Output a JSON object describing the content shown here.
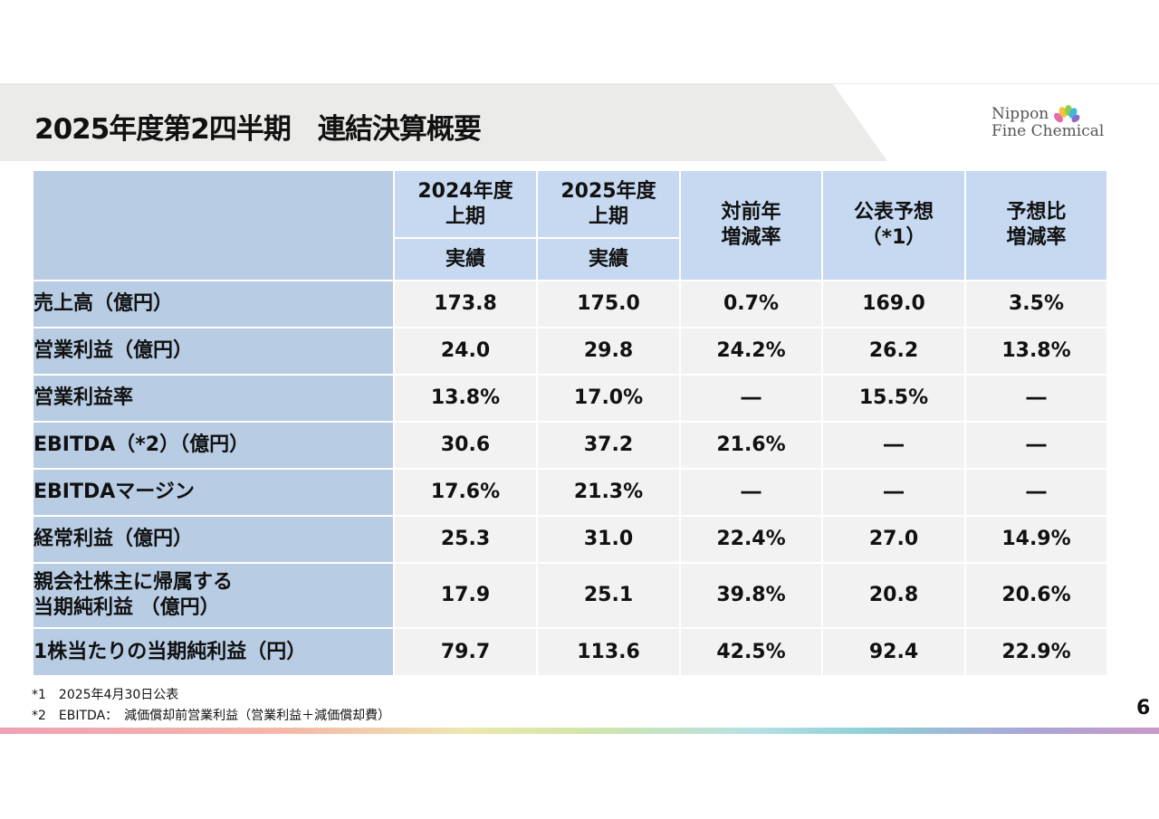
{
  "header": {
    "title": "2025年度第2四半期　連結決算概要",
    "logo_text": [
      "Nippon",
      "Fine Chemical"
    ]
  },
  "table": {
    "columns": [
      {
        "top": "2024年度\n上期",
        "sub": "実績"
      },
      {
        "top": "2025年度\n上期",
        "sub": "実績"
      },
      {
        "top": "対前年\n増減率"
      },
      {
        "top": "公表予想\n（*1）"
      },
      {
        "top": "予想比\n増減率"
      }
    ],
    "rows": [
      {
        "label": "売上高（億円）",
        "values": [
          "173.8",
          "175.0",
          "0.7%",
          "169.0",
          "3.5%"
        ]
      },
      {
        "label": "営業利益（億円）",
        "values": [
          "24.0",
          "29.8",
          "24.2%",
          "26.2",
          "13.8%"
        ]
      },
      {
        "label": "営業利益率",
        "values": [
          "13.8%",
          "17.0%",
          "―",
          "15.5%",
          "―"
        ]
      },
      {
        "label": "EBITDA（*2）（億円）",
        "values": [
          "30.6",
          "37.2",
          "21.6%",
          "―",
          "―"
        ]
      },
      {
        "label": "EBITDAマージン",
        "values": [
          "17.6%",
          "21.3%",
          "―",
          "―",
          "―"
        ]
      },
      {
        "label": "経常利益（億円）",
        "values": [
          "25.3",
          "31.0",
          "22.4%",
          "27.0",
          "14.9%"
        ]
      },
      {
        "label": "親会社株主に帰属する\n当期純利益 （億円）",
        "values": [
          "17.9",
          "25.1",
          "39.8%",
          "20.8",
          "20.6%"
        ]
      },
      {
        "label": "1株当たりの当期純利益（円）",
        "values": [
          "79.7",
          "113.6",
          "42.5%",
          "92.4",
          "22.9%"
        ]
      }
    ]
  },
  "footnotes": [
    "*1　2025年4月30日公表",
    "*2　EBITDA：　減価償却前営業利益（営業利益＋減価償却費）"
  ],
  "page_number": "6",
  "colors": {
    "header_cell": "#c6d9f1",
    "label_cell": "#b8cce4",
    "data_cell": "#f2f2f2",
    "title_bar": "#ebebea"
  }
}
